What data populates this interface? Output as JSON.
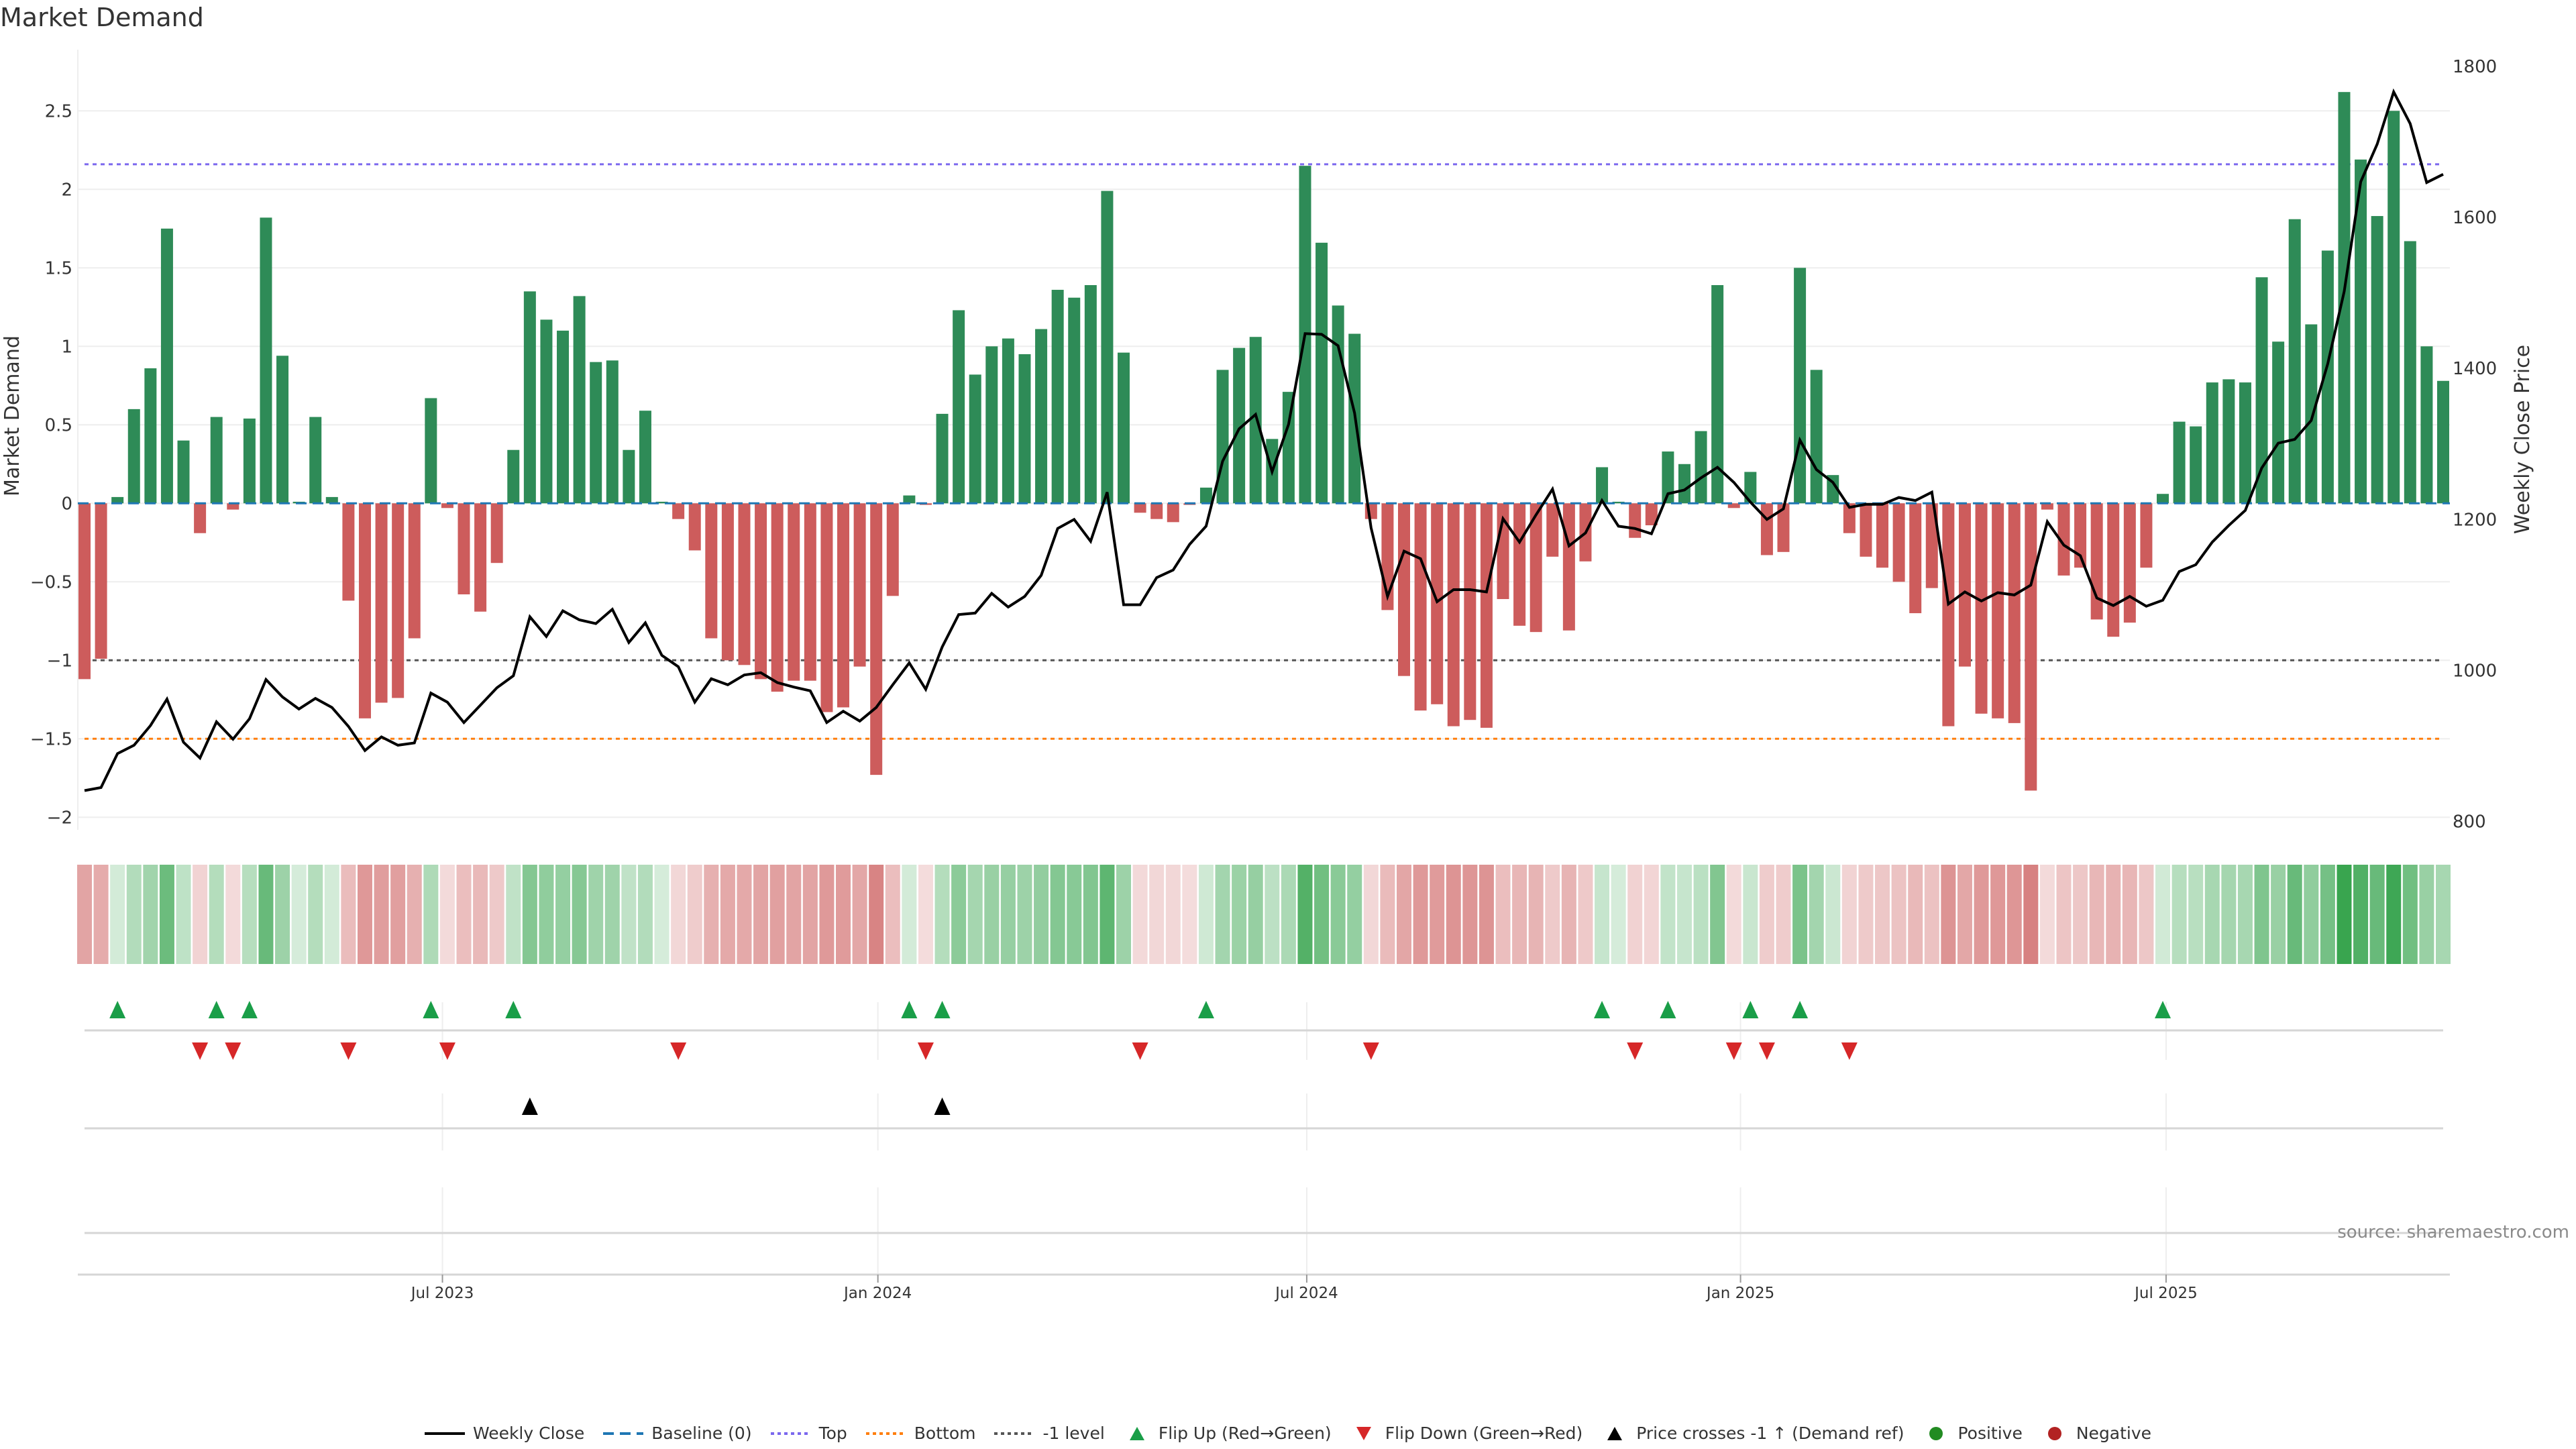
{
  "title": "Market Demand",
  "source": "source: sharemaestro.com",
  "colors": {
    "positive_bar": "#2e8b57",
    "negative_bar": "#cd5c5c",
    "line": "#000000",
    "baseline": "#1f77b4",
    "top": "#7b68ee",
    "bottom": "#ff7f0e",
    "minus1": "#555555",
    "flip_up": "#1a9e48",
    "flip_down": "#d62728",
    "cross": "#000000",
    "positive_dot": "#228b22",
    "negative_dot": "#b22222"
  },
  "legend": [
    {
      "label": "Weekly Close",
      "icon": "solid-line"
    },
    {
      "label": "Baseline (0)",
      "icon": "dashed-line"
    },
    {
      "label": "Top",
      "icon": "dotted-line"
    },
    {
      "label": "Bottom",
      "icon": "dotted-line"
    },
    {
      "label": "-1 level",
      "icon": "dotted-line"
    },
    {
      "label": "Flip Up (Red→Green)",
      "icon": "triangle-up"
    },
    {
      "label": "Flip Down (Green→Red)",
      "icon": "triangle-down"
    },
    {
      "label": "Price crosses -1 ↑ (Demand ref)",
      "icon": "triangle-up"
    },
    {
      "label": "Positive",
      "icon": "circle"
    },
    {
      "label": "Negative",
      "icon": "circle"
    }
  ],
  "chart_data": {
    "type": "bar",
    "title": "Market Demand",
    "ylabel": "Market Demand",
    "y2label": "Weekly Close Price",
    "ylim": [
      -2.08,
      2.89
    ],
    "y2lim": [
      789,
      1822
    ],
    "yticks": [
      -2,
      -1.5,
      -1,
      -0.5,
      0,
      0.5,
      1,
      1.5,
      2,
      2.5
    ],
    "ytick_labels": [
      "−2",
      "−1.5",
      "−1",
      "−0.5",
      "0",
      "0.5",
      "1",
      "1.5",
      "2",
      "2.5"
    ],
    "y2ticks": [
      800,
      1000,
      1200,
      1400,
      1600,
      1800
    ],
    "y2tick_labels": [
      "800",
      "1000",
      "1200",
      "1400",
      "1600",
      "1800"
    ],
    "xticks": [
      {
        "label": "Jul 2023",
        "index": 21.7
      },
      {
        "label": "Jan 2024",
        "index": 48.1
      },
      {
        "label": "Jul 2024",
        "index": 74.1
      },
      {
        "label": "Jan 2025",
        "index": 100.4
      },
      {
        "label": "Jul 2025",
        "index": 126.2
      }
    ],
    "levels": {
      "baseline": 0,
      "top": 2.16,
      "bottom": -1.5,
      "minus1": -1.0
    },
    "grid": true,
    "legend_position": "bottom",
    "demand": [
      -1.12,
      -0.99,
      0.04,
      0.6,
      0.86,
      1.75,
      0.4,
      -0.19,
      0.55,
      -0.04,
      0.54,
      1.82,
      0.94,
      0.01,
      0.55,
      0.04,
      -0.62,
      -1.37,
      -1.27,
      -1.24,
      -0.86,
      0.67,
      -0.03,
      -0.58,
      -0.69,
      -0.38,
      0.34,
      1.35,
      1.17,
      1.1,
      1.32,
      0.9,
      0.91,
      0.34,
      0.59,
      0.01,
      -0.1,
      -0.3,
      -0.86,
      -1.0,
      -1.03,
      -1.12,
      -1.2,
      -1.13,
      -1.13,
      -1.33,
      -1.3,
      -1.04,
      -1.73,
      -0.59,
      0.05,
      -0.01,
      0.57,
      1.23,
      0.82,
      1.0,
      1.05,
      0.95,
      1.11,
      1.36,
      1.31,
      1.39,
      1.99,
      0.96,
      -0.06,
      -0.1,
      -0.12,
      -0.01,
      0.1,
      0.85,
      0.99,
      1.06,
      0.41,
      0.71,
      2.15,
      1.66,
      1.26,
      1.08,
      -0.1,
      -0.68,
      -1.1,
      -1.32,
      -1.28,
      -1.42,
      -1.38,
      -1.43,
      -0.61,
      -0.78,
      -0.82,
      -0.34,
      -0.81,
      -0.37,
      0.23,
      0.01,
      -0.22,
      -0.14,
      0.33,
      0.25,
      0.46,
      1.39,
      -0.03,
      0.2,
      -0.33,
      -0.31,
      1.5,
      0.85,
      0.18,
      -0.19,
      -0.34,
      -0.41,
      -0.5,
      -0.7,
      -0.54,
      -1.42,
      -1.04,
      -1.34,
      -1.37,
      -1.4,
      -1.83,
      -0.04,
      -0.46,
      -0.41,
      -0.74,
      -0.85,
      -0.76,
      -0.41,
      0.06,
      0.52,
      0.49,
      0.77,
      0.79,
      0.77,
      1.44,
      1.03,
      1.81,
      1.14,
      1.61,
      2.62,
      2.19,
      1.83,
      2.5,
      1.67,
      1.0,
      0.78
    ],
    "weekly_close": [
      841,
      845,
      890,
      901,
      927,
      962,
      905,
      884,
      932,
      909,
      936,
      988,
      965,
      949,
      963,
      951,
      926,
      894,
      912,
      901,
      904,
      970,
      958,
      931,
      954,
      977,
      993,
      1071,
      1045,
      1079,
      1067,
      1062,
      1081,
      1037,
      1063,
      1020,
      1005,
      958,
      989,
      981,
      994,
      997,
      984,
      978,
      973,
      931,
      946,
      933,
      951,
      981,
      1010,
      975,
      1031,
      1074,
      1076,
      1102,
      1084,
      1098,
      1126,
      1188,
      1200,
      1171,
      1236,
      1087,
      1087,
      1123,
      1133,
      1167,
      1191,
      1277,
      1320,
      1339,
      1263,
      1326,
      1446,
      1445,
      1430,
      1341,
      1189,
      1098,
      1158,
      1148,
      1091,
      1107,
      1107,
      1104,
      1201,
      1170,
      1206,
      1240,
      1165,
      1182,
      1225,
      1191,
      1188,
      1181,
      1234,
      1239,
      1255,
      1269,
      1249,
      1223,
      1200,
      1214,
      1305,
      1266,
      1249,
      1216,
      1220,
      1220,
      1229,
      1225,
      1236,
      1088,
      1104,
      1092,
      1103,
      1100,
      1113,
      1197,
      1166,
      1152,
      1096,
      1086,
      1098,
      1085,
      1093,
      1131,
      1140,
      1170,
      1192,
      1212,
      1268,
      1301,
      1306,
      1331,
      1406,
      1502,
      1647,
      1697,
      1766,
      1724,
      1646,
      1657
    ],
    "flip_up_indices": [
      2,
      8,
      10,
      21,
      26,
      50,
      52,
      68,
      92,
      96,
      101,
      104,
      126
    ],
    "flip_down_indices": [
      7,
      9,
      16,
      22,
      36,
      51,
      64,
      78,
      94,
      100,
      102,
      107
    ],
    "price_cross_indices": [
      27,
      52
    ]
  }
}
